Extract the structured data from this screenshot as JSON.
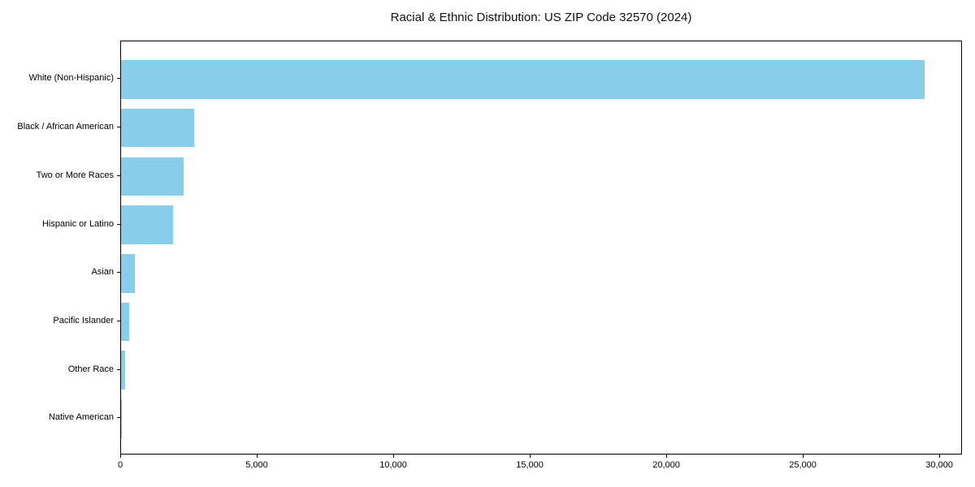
{
  "chart_data": {
    "type": "bar",
    "orientation": "horizontal",
    "title": "Racial & Ethnic Distribution: US ZIP Code 32570 (2024)",
    "categories": [
      "White (Non-Hispanic)",
      "Black / African American",
      "Two or More Races",
      "Hispanic or Latino",
      "Asian",
      "Pacific Islander",
      "Other Race",
      "Native American"
    ],
    "values": [
      29430,
      2690,
      2290,
      1900,
      500,
      305,
      160,
      25
    ],
    "xlabel": "",
    "ylabel": "",
    "xlim": [
      0,
      30830
    ],
    "xtick_labels": [
      "0",
      "5,000",
      "10,000",
      "15,000",
      "20,000",
      "25,000",
      "30,000"
    ],
    "bar_color": "#87CEEB",
    "grid": false,
    "legend": null
  }
}
